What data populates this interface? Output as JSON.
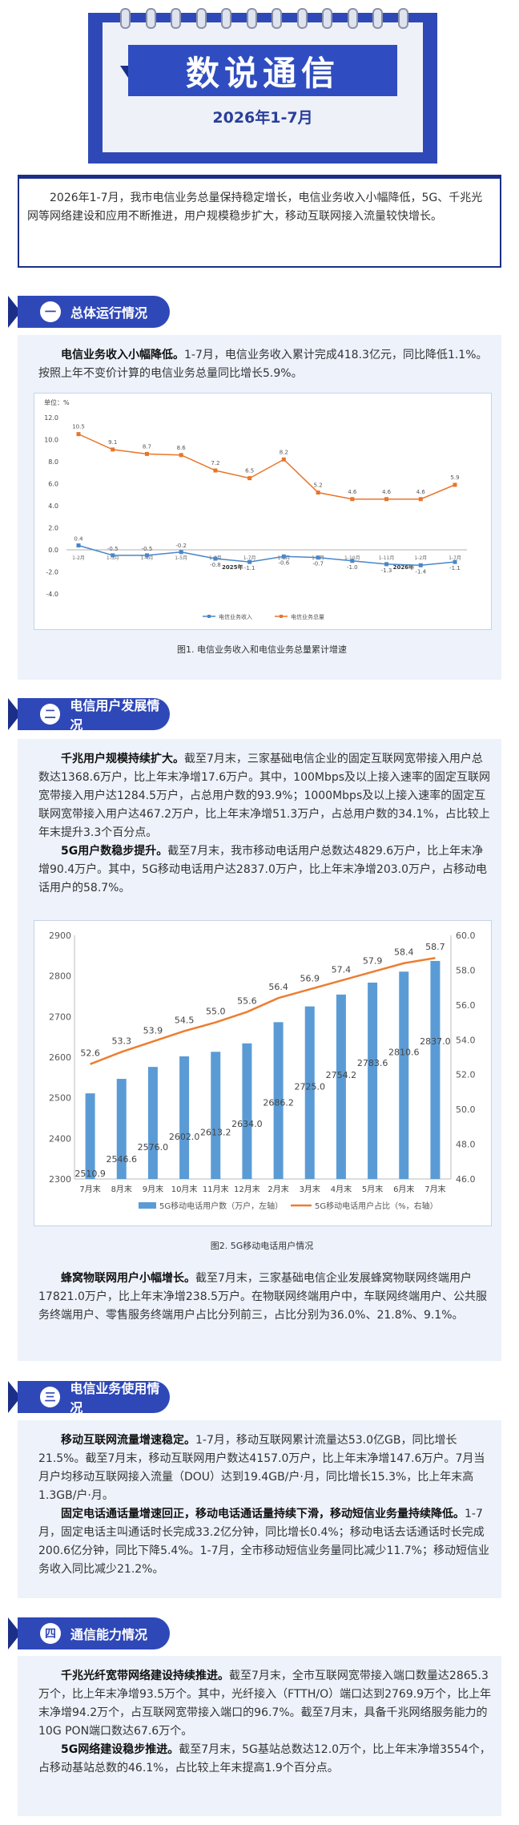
{
  "banner": {
    "title": "数说通信",
    "subtitle": "2026年1-7月"
  },
  "intro": "2026年1-7月，我市电信业务总量保持稳定增长，电信业务收入小幅降低，5G、千兆光网等网络建设和应用不断推进，用户规模稳步扩大，移动互联网接入流量较快增长。",
  "sections": [
    {
      "num": "一",
      "title": "总体运行情况"
    },
    {
      "num": "二",
      "title": "电信用户发展情况"
    },
    {
      "num": "三",
      "title": "电信业务使用情况"
    },
    {
      "num": "四",
      "title": "通信能力情况"
    }
  ],
  "s1": {
    "lead": "电信业务收入小幅降低。",
    "body": "1-7月，电信业务收入累计完成418.3亿元，同比降低1.1%。按照上年不变价计算的电信业务总量同比增长5.9%。"
  },
  "s2": {
    "p1_lead": "千兆用户规模持续扩大。",
    "p1_body": "截至7月末，三家基础电信企业的固定互联网宽带接入用户总数达1368.6万户，比上年末净增17.6万户。其中，100Mbps及以上接入速率的固定互联网宽带接入用户达1284.5万户，占总用户数的93.9%；1000Mbps及以上接入速率的固定互联网宽带接入用户达467.2万户，比上年末净增51.3万户，占总用户数的34.1%，占比较上年末提升3.3个百分点。",
    "p2_lead": "5G用户数稳步提升。",
    "p2_body": "截至7月末，我市移动电话用户总数达4829.6万户，比上年末净增90.4万户。其中，5G移动电话用户达2837.0万户，比上年末净增203.0万户，占移动电话用户的58.7%。",
    "p3_lead": "蜂窝物联网用户小幅增长。",
    "p3_body": "截至7月末，三家基础电信企业发展蜂窝物联网终端用户17821.0万户，比上年末净增238.5万户。在物联网终端用户中，车联网终端用户、公共服务终端用户、零售服务终端用户占比分列前三，占比分别为36.0%、21.8%、9.1%。"
  },
  "s3": {
    "p1_lead": "移动互联网流量增速稳定。",
    "p1_body": "1-7月，移动互联网累计流量达53.0亿GB，同比增长21.5%。截至7月末，移动互联网用户数达4157.0万户，比上年末净增147.6万户。7月当月户均移动互联网接入流量（DOU）达到19.4GB/户·月，同比增长15.3%，比上年末高1.3GB/户·月。",
    "p2_lead": "固定电话通话量增速回正，移动电话通话量持续下滑，移动短信业务量持续降低。",
    "p2_body": "1-7月，固定电话主叫通话时长完成33.2亿分钟，同比增长0.4%；移动电话去话通话时长完成200.6亿分钟，同比下降5.4%。1-7月，全市移动短信业务量同比减少11.7%；移动短信业务收入同比减少21.2%。"
  },
  "s4": {
    "p1_lead": "千兆光纤宽带网络建设持续推进。",
    "p1_body": "截至7月末，全市互联网宽带接入端口数量达2865.3万个，比上年末净增93.5万个。其中，光纤接入（FTTH/O）端口达到2769.9万个，比上年末净增94.2万个，占互联网宽带接入端口的96.7%。截至7月末，具备千兆网络服务能力的10G PON端口数达67.6万个。",
    "p2_lead": "5G网络建设稳步推进。",
    "p2_body": "截至7月末，5G基站总数达12.0万个，比上年末净增3554个，占移动基站总数的46.1%，占比较上年末提高1.9个百分点。"
  },
  "figure1_caption": "图1. 电信业务收入和电信业务总量累计增速",
  "figure2_caption": "图2. 5G移动电话用户情况",
  "chart_data": [
    {
      "type": "line",
      "ylabel": "单位：%",
      "ylim": [
        -4.0,
        12.0
      ],
      "yticks": [
        "12.0",
        "10.0",
        "8.0",
        "6.0",
        "4.0",
        "2.0",
        "0.0",
        "-2.0",
        "-4.0"
      ],
      "x_markers": [
        "2025年",
        "2026年"
      ],
      "series": [
        {
          "name": "电信业务收入",
          "color": "#4a86c8",
          "values": [
            0.4,
            -0.5,
            -0.5,
            -0.2,
            -0.8,
            -1.1,
            -0.6,
            -0.7,
            -1.0,
            -1.3,
            -1.4,
            -1.1
          ],
          "labels": [
            "0.4",
            "-0.5",
            "-0.5",
            "-0.2",
            "-0.8",
            "-1.1",
            "-0.6",
            "-0.7",
            "-1.0",
            "-1.3",
            "-1.4",
            "-1.1"
          ]
        },
        {
          "name": "电信业务总量",
          "color": "#e8752a",
          "values": [
            10.5,
            9.1,
            8.7,
            8.6,
            7.2,
            6.5,
            8.2,
            5.2,
            4.6,
            4.6,
            4.6,
            5.9
          ],
          "labels": [
            "10.5",
            "9.1",
            "8.7",
            "8.6",
            "7.2",
            "6.5",
            "8.2",
            "5.2",
            "4.6",
            "4.6",
            "4.6",
            "5.9"
          ]
        }
      ],
      "x_tick_labels": [
        "1-2月",
        "1-3月",
        "1-4月",
        "1-5月",
        "1-6月",
        "1-7月",
        "1-8月",
        "1-9月",
        "1-10月",
        "1-11月",
        "1-2月",
        "1-7月"
      ]
    },
    {
      "type": "bar",
      "categories": [
        "7月末",
        "8月末",
        "9月末",
        "10月末",
        "11月末",
        "12月末",
        "2月末",
        "3月末",
        "4月末",
        "5月末",
        "6月末",
        "7月末"
      ],
      "ylim": [
        2300,
        2900
      ],
      "yticks": [
        2900,
        2800,
        2700,
        2600,
        2500,
        2400,
        2300
      ],
      "y2lim": [
        46.0,
        60.0
      ],
      "y2ticks": [
        "60.0",
        "58.0",
        "56.0",
        "54.0",
        "52.0",
        "50.0",
        "48.0",
        "46.0"
      ],
      "series": [
        {
          "name": "5G移动电话用户数（万户，左轴）",
          "type": "bar",
          "color": "#5b9bd5",
          "values": [
            2510.9,
            2546.6,
            2576.0,
            2602.0,
            2613.2,
            2634.0,
            2686.2,
            2725.0,
            2754.2,
            2783.6,
            2810.6,
            2837.0
          ]
        },
        {
          "name": "5G移动电话用户占比（%，右轴）",
          "type": "line",
          "color": "#ed7d31",
          "values": [
            52.6,
            53.3,
            53.9,
            54.5,
            55.0,
            55.6,
            56.4,
            56.9,
            57.4,
            57.9,
            58.4,
            58.7
          ]
        }
      ]
    }
  ]
}
